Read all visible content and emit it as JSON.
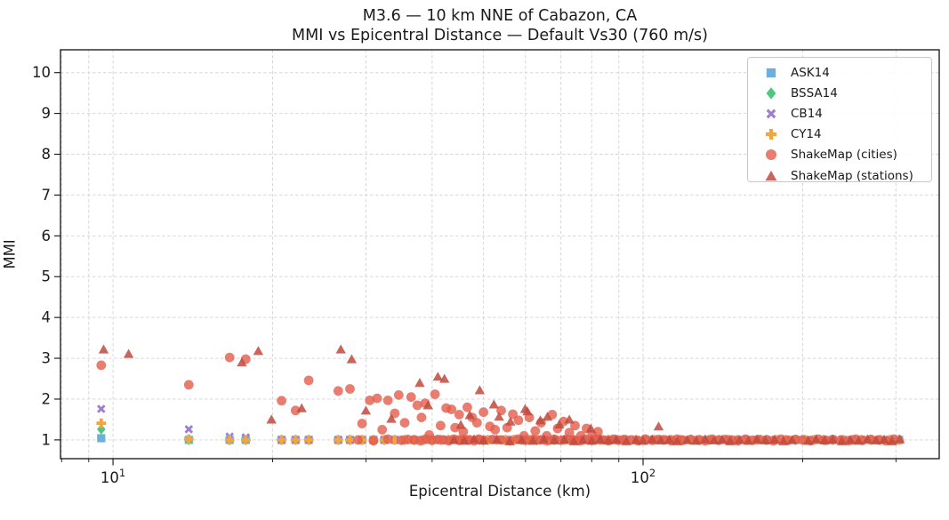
{
  "chart_data": {
    "type": "scatter",
    "title": "M3.6 — 10 km NNE of Cabazon, CA",
    "subtitle": "MMI vs Epicentral Distance — Default Vs30 (760 m/s)",
    "xlabel": "Epicentral Distance (km)",
    "ylabel": "MMI",
    "xscale": "log",
    "xlim": [
      7.96,
      362
    ],
    "ylim": [
      0.54,
      10.56
    ],
    "grid": true,
    "grid_color": "#d7d7d7",
    "spine_color": "#111111",
    "text_color": "#1a1a1a",
    "legend_position": "upper right",
    "yticks": [
      1,
      2,
      3,
      4,
      5,
      6,
      7,
      8,
      9,
      10
    ],
    "xticks_major": [
      {
        "value": 10,
        "base": "10",
        "exponent": "1"
      },
      {
        "value": 100,
        "base": "10",
        "exponent": "2"
      }
    ],
    "xticks_minor": [
      8,
      9,
      20,
      30,
      40,
      50,
      60,
      70,
      80,
      90,
      200,
      300
    ],
    "gmpe_distances": [
      9.5,
      13.9,
      16.6,
      17.8,
      20.8,
      22.1,
      23.4,
      26.6,
      28,
      29.5,
      31,
      32.5,
      34,
      35.5,
      37,
      38.5,
      40,
      41.5,
      43,
      45,
      47,
      49,
      51,
      53,
      55,
      57,
      59,
      61,
      63,
      65,
      68,
      71,
      74,
      77,
      80,
      83,
      86,
      89,
      93,
      97,
      101,
      105,
      109,
      113,
      118,
      123,
      128,
      133,
      139,
      145,
      151,
      157,
      164,
      171,
      178,
      186,
      194,
      202,
      210,
      219,
      228,
      238,
      248,
      258,
      269,
      280,
      292,
      304
    ],
    "series": [
      {
        "name": "ASK14",
        "marker": "square",
        "color": "#6cafdf",
        "opacity": 1,
        "values": [
          1.04
        ],
        "fill_value": 1.0
      },
      {
        "name": "BSSA14",
        "marker": "diamond",
        "color": "#4ec77f",
        "opacity": 1,
        "values": [
          1.26
        ],
        "fill_value": 1.0
      },
      {
        "name": "CB14",
        "marker": "x",
        "color": "#9c7ed2",
        "opacity": 1,
        "values": [
          1.76,
          1.26,
          1.08,
          1.06
        ],
        "fill_value": 1.0
      },
      {
        "name": "CY14",
        "marker": "plus",
        "color": "#f2a73e",
        "opacity": 1,
        "values": [
          1.41,
          1.02
        ],
        "fill_value": 1.0
      },
      {
        "name": "ShakeMap (cities)",
        "marker": "circle",
        "color": "#e45c4c",
        "opacity": 0.8,
        "points": [
          [
            9.5,
            2.83
          ],
          [
            13.9,
            2.35
          ],
          [
            16.6,
            3.02
          ],
          [
            17.8,
            2.98
          ],
          [
            20.8,
            1.96
          ],
          [
            22.1,
            1.72
          ],
          [
            23.4,
            2.46
          ],
          [
            26.6,
            2.2
          ],
          [
            28,
            2.25
          ],
          [
            29.5,
            1.4
          ],
          [
            30.5,
            1.97
          ],
          [
            31.5,
            2.02
          ],
          [
            32.2,
            1.25
          ],
          [
            33,
            1.97
          ],
          [
            34,
            1.65
          ],
          [
            34.6,
            2.1
          ],
          [
            35.5,
            1.42
          ],
          [
            36.5,
            2.05
          ],
          [
            37.5,
            1.85
          ],
          [
            38.2,
            1.55
          ],
          [
            38.8,
            1.9
          ],
          [
            39.5,
            1.12
          ],
          [
            40.5,
            2.12
          ],
          [
            41.5,
            1.35
          ],
          [
            42.5,
            1.78
          ],
          [
            43.5,
            1.75
          ],
          [
            44.2,
            1.3
          ],
          [
            45,
            1.62
          ],
          [
            45.8,
            1.2
          ],
          [
            46.6,
            1.8
          ],
          [
            47.6,
            1.55
          ],
          [
            48.6,
            1.42
          ],
          [
            50,
            1.68
          ],
          [
            51.4,
            1.33
          ],
          [
            52.6,
            1.25
          ],
          [
            54,
            1.72
          ],
          [
            55.4,
            1.3
          ],
          [
            56.8,
            1.63
          ],
          [
            58.2,
            1.48
          ],
          [
            59.6,
            1.1
          ],
          [
            61,
            1.55
          ],
          [
            62.6,
            1.22
          ],
          [
            64.2,
            1.42
          ],
          [
            65.8,
            1.1
          ],
          [
            67.4,
            1.62
          ],
          [
            69,
            1.28
          ],
          [
            70.8,
            1.45
          ],
          [
            72.6,
            1.18
          ],
          [
            74.4,
            1.35
          ],
          [
            76.3,
            1.1
          ],
          [
            78.2,
            1.28
          ],
          [
            80.2,
            1.12
          ],
          [
            82.2,
            1.2
          ],
          [
            29,
            1
          ],
          [
            31,
            0.98
          ],
          [
            33,
            1.02
          ],
          [
            35,
            0.99
          ],
          [
            36,
            1.01
          ],
          [
            37,
            1
          ],
          [
            38,
            0.98
          ],
          [
            39,
            1.02
          ],
          [
            40,
            0.99
          ],
          [
            41,
            1.01
          ],
          [
            42,
            1
          ],
          [
            43,
            0.98
          ],
          [
            44,
            1.02
          ],
          [
            45,
            0.99
          ],
          [
            46,
            1.01
          ],
          [
            47,
            1
          ],
          [
            48,
            0.98
          ],
          [
            49,
            1.02
          ],
          [
            50,
            0.99
          ],
          [
            52,
            1.01
          ],
          [
            54,
            1
          ],
          [
            56,
            0.98
          ],
          [
            58,
            1.02
          ],
          [
            60,
            0.99
          ],
          [
            62,
            1.01
          ],
          [
            64,
            1
          ],
          [
            66,
            0.98
          ],
          [
            68,
            1.02
          ],
          [
            70,
            0.99
          ],
          [
            72,
            1.01
          ],
          [
            74,
            1
          ],
          [
            76,
            0.98
          ],
          [
            78,
            1.02
          ],
          [
            80,
            0.99
          ],
          [
            82,
            1.01
          ],
          [
            84,
            1
          ],
          [
            86,
            0.98
          ],
          [
            88,
            1.02
          ],
          [
            90,
            0.99
          ],
          [
            92,
            1.01
          ],
          [
            95,
            1
          ],
          [
            98,
            0.98
          ],
          [
            101,
            1.02
          ],
          [
            104,
            0.99
          ],
          [
            107,
            1.01
          ],
          [
            110,
            1
          ],
          [
            113,
            0.98
          ],
          [
            116,
            1.02
          ],
          [
            119,
            0.99
          ],
          [
            123,
            1.01
          ],
          [
            127,
            1
          ],
          [
            131,
            0.98
          ],
          [
            135,
            1.02
          ],
          [
            139,
            0.99
          ],
          [
            143,
            1.01
          ],
          [
            147,
            1
          ],
          [
            151,
            0.98
          ],
          [
            156,
            1.02
          ],
          [
            161,
            0.99
          ],
          [
            166,
            1.01
          ],
          [
            171,
            1
          ],
          [
            176,
            0.98
          ],
          [
            182,
            1.02
          ],
          [
            188,
            0.99
          ],
          [
            194,
            1.01
          ],
          [
            200,
            1
          ],
          [
            207,
            0.98
          ],
          [
            214,
            1.02
          ],
          [
            221,
            0.99
          ],
          [
            228,
            1.01
          ],
          [
            236,
            1
          ],
          [
            244,
            0.98
          ],
          [
            252,
            1.02
          ],
          [
            260,
            0.99
          ],
          [
            269,
            1.01
          ],
          [
            278,
            1
          ],
          [
            287,
            0.98
          ],
          [
            297,
            1.02
          ]
        ]
      },
      {
        "name": "ShakeMap (stations)",
        "marker": "triangle",
        "color": "#bf4a3e",
        "opacity": 0.85,
        "points": [
          [
            9.6,
            3.22
          ],
          [
            10.7,
            3.11
          ],
          [
            17.5,
            2.9
          ],
          [
            18.8,
            3.18
          ],
          [
            19.9,
            1.5
          ],
          [
            22.7,
            1.78
          ],
          [
            26.9,
            3.22
          ],
          [
            28.2,
            2.98
          ],
          [
            30,
            1.72
          ],
          [
            33.5,
            1.52
          ],
          [
            37.9,
            2.4
          ],
          [
            39.3,
            1.85
          ],
          [
            41,
            2.55
          ],
          [
            42.2,
            2.5
          ],
          [
            45.3,
            1.37
          ],
          [
            47.1,
            1.61
          ],
          [
            49.2,
            2.22
          ],
          [
            52.3,
            1.87
          ],
          [
            53.5,
            1.57
          ],
          [
            56.2,
            1.45
          ],
          [
            59.9,
            1.76
          ],
          [
            60.5,
            1.7
          ],
          [
            64,
            1.48
          ],
          [
            66,
            1.57
          ],
          [
            69.5,
            1.38
          ],
          [
            72.6,
            1.5
          ],
          [
            79.7,
            1.28
          ],
          [
            107,
            1.33
          ],
          [
            305,
            1.02
          ],
          [
            44,
            1
          ],
          [
            46,
            0.98
          ],
          [
            48,
            1.02
          ],
          [
            50,
            0.99
          ],
          [
            53,
            1.01
          ],
          [
            56,
            0.97
          ],
          [
            59,
            1
          ],
          [
            62,
            0.98
          ],
          [
            65,
            1.02
          ],
          [
            68,
            0.99
          ],
          [
            71,
            1.01
          ],
          [
            74,
            0.97
          ],
          [
            77,
            1
          ],
          [
            80,
            0.98
          ],
          [
            83,
            1.02
          ],
          [
            86,
            0.99
          ],
          [
            89,
            1.01
          ],
          [
            93,
            0.97
          ],
          [
            97,
            1
          ],
          [
            100,
            0.98
          ],
          [
            104,
            1.02
          ],
          [
            108,
            0.99
          ],
          [
            112,
            1.01
          ],
          [
            116,
            0.97
          ],
          [
            121,
            1
          ],
          [
            126,
            0.98
          ],
          [
            131,
            1.02
          ],
          [
            136,
            0.99
          ],
          [
            141,
            1.01
          ],
          [
            146,
            0.97
          ],
          [
            152,
            1
          ],
          [
            158,
            0.98
          ],
          [
            164,
            1.02
          ],
          [
            170,
            0.99
          ],
          [
            177,
            1.01
          ],
          [
            184,
            0.97
          ],
          [
            191,
            1
          ],
          [
            205,
            0.98
          ],
          [
            212,
            1.02
          ],
          [
            220,
            0.99
          ],
          [
            228,
            1.01
          ],
          [
            237,
            0.97
          ],
          [
            246,
            1
          ],
          [
            255,
            0.98
          ],
          [
            265,
            1.02
          ],
          [
            275,
            0.99
          ],
          [
            285,
            1.01
          ],
          [
            295,
            0.97
          ]
        ]
      }
    ]
  }
}
